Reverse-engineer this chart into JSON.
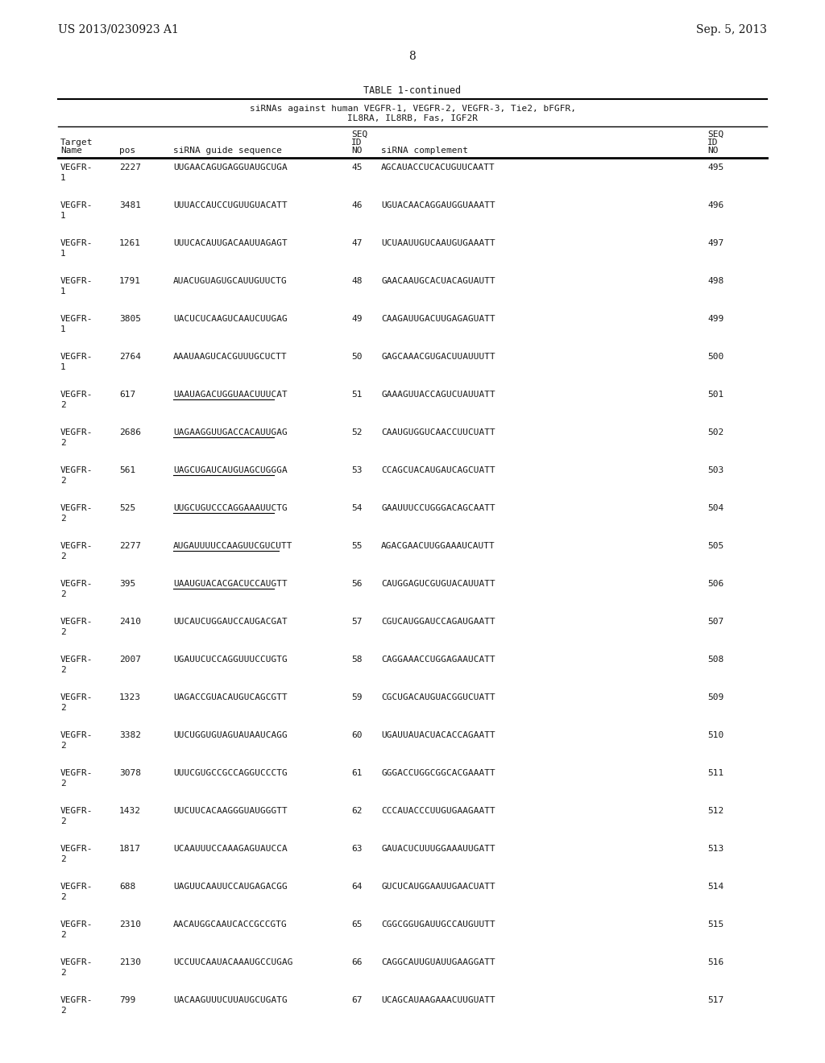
{
  "header_left": "US 2013/0230923 A1",
  "header_right": "Sep. 5, 2013",
  "page_number": "8",
  "table_title": "TABLE 1-continued",
  "table_subtitle1": "siRNAs against human VEGFR-1, VEGFR-2, VEGFR-3, Tie2, bFGFR,",
  "table_subtitle2": "IL8RA, IL8RB, Fas, IGF2R",
  "rows": [
    [
      "VEGFR-",
      "1",
      "2227",
      "UUGAACAGUGAGGUAUGCUGA",
      "45",
      "AGCAUACCUCACUGUUCAATT",
      "495",
      false
    ],
    [
      "VEGFR-",
      "1",
      "3481",
      "UUUACCAUCCUGUUGUACATT",
      "46",
      "UGUACAACAGGAUGGUAAATT",
      "496",
      false
    ],
    [
      "VEGFR-",
      "1",
      "1261",
      "UUUCACAUUGACAAUUAGAGT",
      "47",
      "UCUAAUUGUCAAUGUGAAATT",
      "497",
      false
    ],
    [
      "VEGFR-",
      "1",
      "1791",
      "AUACUGUAGUGCAUUGUUCTG",
      "48",
      "GAACAAUGCACUACAGUAUTT",
      "498",
      false
    ],
    [
      "VEGFR-",
      "1",
      "3805",
      "UACUCUCAAGUCAAUCUUGAG",
      "49",
      "CAAGAUUGACUUGAGAGUATT",
      "499",
      false
    ],
    [
      "VEGFR-",
      "1",
      "2764",
      "AAAUAAGUCACGUUUGCUCTT",
      "50",
      "GAGCAAACGUGACUUAUUUTT",
      "500",
      false
    ],
    [
      "VEGFR-",
      "2",
      "617",
      "UAAUAGACUGGUAACUUUCAT",
      "51",
      "GAAAGUUACCAGUCUAUUATT",
      "501",
      true
    ],
    [
      "VEGFR-",
      "2",
      "2686",
      "UAGAAGGUUGACCACAUUGAG",
      "52",
      "CAAUGUGGUCAACCUUCUATT",
      "502",
      true
    ],
    [
      "VEGFR-",
      "2",
      "561",
      "UAGCUGAUCAUGUAGCUGGGA",
      "53",
      "CCAGCUACAUGAUCAGCUATT",
      "503",
      true
    ],
    [
      "VEGFR-",
      "2",
      "525",
      "UUGCUGUCCCAGGAAAUUCTG",
      "54",
      "GAAUUUCCUGGGACAGCAATT",
      "504",
      true
    ],
    [
      "VEGFR-",
      "2",
      "2277",
      "AUGAUUUUCCAAGUUCGUCUTT",
      "55",
      "AGACGAACUUGGAAAUCAUTT",
      "505",
      true
    ],
    [
      "VEGFR-",
      "2",
      "395",
      "UAAUGUACACGACUCCAUGTT",
      "56",
      "CAUGGAGUCGUGUACAUUATT",
      "506",
      true
    ],
    [
      "VEGFR-",
      "2",
      "2410",
      "UUCAUCUGGAUCCAUGACGAT",
      "57",
      "CGUCAUGGAUCCAGAUGAATT",
      "507",
      false
    ],
    [
      "VEGFR-",
      "2",
      "2007",
      "UGAUUCUCCAGGUUUCCUGTG",
      "58",
      "CAGGAAACCUGGAGAAUCATT",
      "508",
      false
    ],
    [
      "VEGFR-",
      "2",
      "1323",
      "UAGACCGUACAUGUCAGCGTT",
      "59",
      "CGCUGACAUGUACGGUCUATT",
      "509",
      false
    ],
    [
      "VEGFR-",
      "2",
      "3382",
      "UUCUGGUGUAGUAUAAUCAGG",
      "60",
      "UGAUUAUACUACACCAGAATT",
      "510",
      false
    ],
    [
      "VEGFR-",
      "2",
      "3078",
      "UUUCGUGCCGCCAGGUCCCTG",
      "61",
      "GGGACCUGGCGGCACGAAATT",
      "511",
      false
    ],
    [
      "VEGFR-",
      "2",
      "1432",
      "UUCUUCACAAGGGUAUGGGTT",
      "62",
      "CCCAUACCCUUGUGAAGAATT",
      "512",
      false
    ],
    [
      "VEGFR-",
      "2",
      "1817",
      "UCAAUUUCCAAAGAGUAUCCA",
      "63",
      "GAUACUCUUUGGAAAUUGATT",
      "513",
      false
    ],
    [
      "VEGFR-",
      "2",
      "688",
      "UAGUUCAAUUCCAUGAGACGG",
      "64",
      "GUCUCAUGGAAUUGAACUATT",
      "514",
      false
    ],
    [
      "VEGFR-",
      "2",
      "2310",
      "AACAUGGCAAUCACCGCCGTG",
      "65",
      "CGGCGGUGAUUGCCAUGUUTT",
      "515",
      false
    ],
    [
      "VEGFR-",
      "2",
      "2130",
      "UCCUUCAAUACAAAUGCCUGAG",
      "66",
      "CAGGCAUUGUAUUGAAGGATT",
      "516",
      false
    ],
    [
      "VEGFR-",
      "2",
      "799",
      "UACAAGUUUCUUAUGCUGATG",
      "67",
      "UCAGCAUAAGAAACUUGUATT",
      "517",
      false
    ]
  ],
  "bg_color": "#ffffff",
  "text_color": "#1a1a1a"
}
